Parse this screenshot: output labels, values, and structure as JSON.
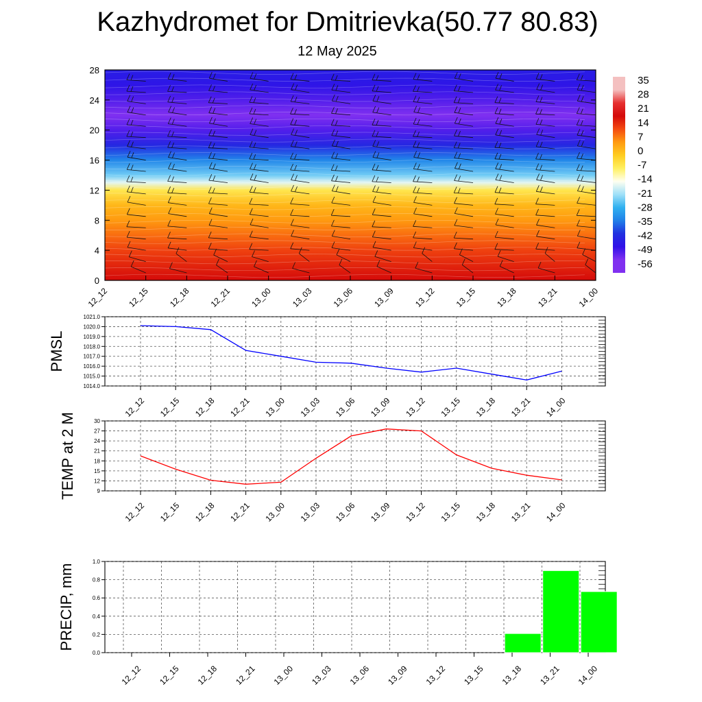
{
  "title": "Kazhydromet for Dmitrievka(50.77 80.83)",
  "subtitle": "12 May 2025",
  "chart_data": [
    {
      "type": "heatmap",
      "x_tick_labels": [
        "12_12",
        "12_15",
        "12_18",
        "12_21",
        "13_00",
        "13_03",
        "13_06",
        "13_09",
        "13_12",
        "13_15",
        "13_18",
        "13_21",
        "14_00"
      ],
      "y_ticks": [
        0,
        4,
        8,
        12,
        16,
        20,
        24,
        28
      ],
      "ylim": [
        0,
        28
      ],
      "colorbar": {
        "labels": [
          "35",
          "28",
          "21",
          "14",
          "7",
          "0",
          "-7",
          "-14",
          "-21",
          "-28",
          "-35",
          "-42",
          "-49",
          "-56"
        ],
        "stops": [
          {
            "value": 35,
            "color": "#f4c0c0"
          },
          {
            "value": 28,
            "color": "#e63030"
          },
          {
            "value": 21,
            "color": "#d40a0a"
          },
          {
            "value": 14,
            "color": "#f44a10"
          },
          {
            "value": 7,
            "color": "#ff9a10"
          },
          {
            "value": 0,
            "color": "#ffcc20"
          },
          {
            "value": -7,
            "color": "#fff060"
          },
          {
            "value": -14,
            "color": "#fffff0"
          },
          {
            "value": -21,
            "color": "#a0e0f8"
          },
          {
            "value": -28,
            "color": "#30b0f0"
          },
          {
            "value": -35,
            "color": "#2080e8"
          },
          {
            "value": -42,
            "color": "#2030e0"
          },
          {
            "value": -49,
            "color": "#3010e8"
          },
          {
            "value": -56,
            "color": "#8030f0"
          }
        ]
      },
      "profile": [
        {
          "h": 0,
          "v": 21
        },
        {
          "h": 2,
          "v": 18
        },
        {
          "h": 4,
          "v": 15
        },
        {
          "h": 6,
          "v": 11
        },
        {
          "h": 8,
          "v": 7
        },
        {
          "h": 10,
          "v": 3
        },
        {
          "h": 12,
          "v": -5
        },
        {
          "h": 13,
          "v": -16
        },
        {
          "h": 14,
          "v": -24
        },
        {
          "h": 16,
          "v": -34
        },
        {
          "h": 18,
          "v": -44
        },
        {
          "h": 20,
          "v": -52
        },
        {
          "h": 22,
          "v": -56
        },
        {
          "h": 24,
          "v": -52
        },
        {
          "h": 26,
          "v": -48
        },
        {
          "h": 28,
          "v": -46
        }
      ]
    },
    {
      "type": "line",
      "ylabel": "PMSL",
      "color": "#0000ff",
      "x": [
        "12_12",
        "12_15",
        "12_18",
        "12_21",
        "13_00",
        "13_03",
        "13_06",
        "13_09",
        "13_12",
        "13_15",
        "13_18",
        "13_21",
        "14_00"
      ],
      "values": [
        1020.1,
        1020.0,
        1019.7,
        1017.6,
        1017.0,
        1016.4,
        1016.3,
        1015.8,
        1015.4,
        1015.8,
        1015.2,
        1014.6,
        1015.5
      ],
      "ylim": [
        1014.0,
        1021.0
      ],
      "y_ticks": [
        "1014.0",
        "1015.0",
        "1016.0",
        "1017.0",
        "1018.0",
        "1019.0",
        "1020.0",
        "1021.0"
      ]
    },
    {
      "type": "line",
      "ylabel": "TEMP at 2 M",
      "color": "#ff0000",
      "x": [
        "12_12",
        "12_15",
        "12_18",
        "12_21",
        "13_00",
        "13_03",
        "13_06",
        "13_09",
        "13_12",
        "13_15",
        "13_18",
        "13_21",
        "14_00"
      ],
      "values": [
        19.5,
        15.5,
        12.2,
        11.0,
        11.6,
        18.8,
        25.5,
        27.6,
        27.0,
        19.8,
        15.8,
        13.7,
        12.3
      ],
      "ylim": [
        9,
        30
      ],
      "y_ticks": [
        "9",
        "12",
        "15",
        "18",
        "21",
        "24",
        "27",
        "30"
      ]
    },
    {
      "type": "bar",
      "ylabel": "PRECIP, mm",
      "color": "#00ff00",
      "categories": [
        "12_12",
        "12_15",
        "12_18",
        "12_21",
        "13_00",
        "13_03",
        "13_06",
        "13_09",
        "13_12",
        "13_15",
        "13_18",
        "13_21",
        "14_00"
      ],
      "values": [
        0,
        0,
        0,
        0,
        0,
        0,
        0,
        0,
        0,
        0,
        0.21,
        0.9,
        0.67
      ],
      "ylim": [
        0.0,
        1.0
      ],
      "y_ticks": [
        "0.0",
        "0.2",
        "0.4",
        "0.6",
        "0.8",
        "1.0"
      ]
    }
  ]
}
